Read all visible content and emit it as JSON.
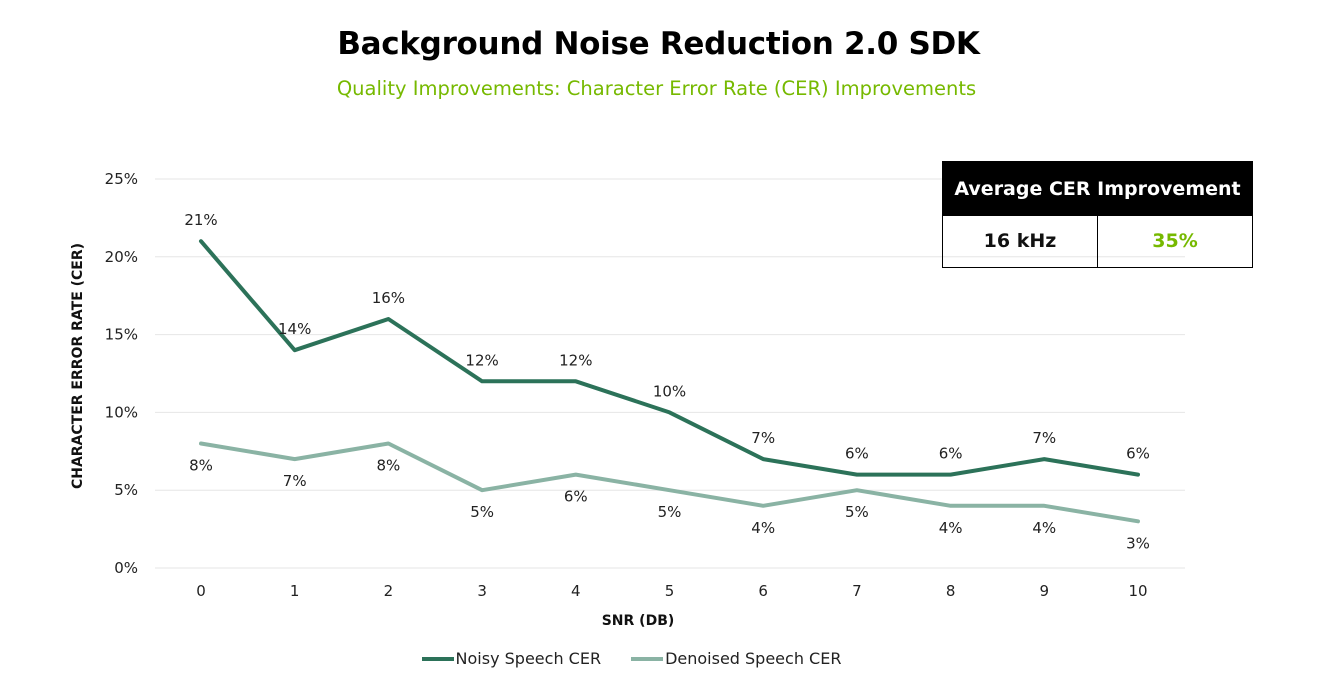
{
  "title": "Background Noise Reduction 2.0 SDK",
  "subtitle": "Quality Improvements: Character Error Rate (CER) Improvements",
  "summary_table": {
    "header": "Average CER Improvement",
    "rate": "16 kHz",
    "improvement": "35%"
  },
  "colors": {
    "noisy": "#2c7259",
    "denoised": "#8ab3a4",
    "accent": "#76b900",
    "grid": "#e6e6e6"
  },
  "chart_data": {
    "type": "line",
    "title": "Background Noise Reduction 2.0 SDK",
    "subtitle": "Quality Improvements: Character Error Rate (CER) Improvements",
    "xlabel": "SNR (DB)",
    "ylabel": "CHARACTER ERROR RATE (CER)",
    "x": [
      0,
      1,
      2,
      3,
      4,
      5,
      6,
      7,
      8,
      9,
      10
    ],
    "ylim": [
      0,
      25
    ],
    "yticks": [
      0,
      5,
      10,
      15,
      20,
      25
    ],
    "ytick_labels": [
      "0%",
      "5%",
      "10%",
      "15%",
      "20%",
      "25%"
    ],
    "grid": true,
    "legend_position": "bottom",
    "series": [
      {
        "name": "Noisy Speech CER",
        "values": [
          21,
          14,
          16,
          12,
          12,
          10,
          7,
          6,
          6,
          7,
          6
        ],
        "labels": [
          "21%",
          "14%",
          "16%",
          "12%",
          "12%",
          "10%",
          "7%",
          "6%",
          "6%",
          "7%",
          "6%"
        ]
      },
      {
        "name": "Denoised Speech CER",
        "values": [
          8,
          7,
          8,
          5,
          6,
          5,
          4,
          5,
          4,
          4,
          3
        ],
        "labels": [
          "8%",
          "7%",
          "8%",
          "5%",
          "6%",
          "5%",
          "4%",
          "5%",
          "4%",
          "4%",
          "3%"
        ]
      }
    ]
  }
}
